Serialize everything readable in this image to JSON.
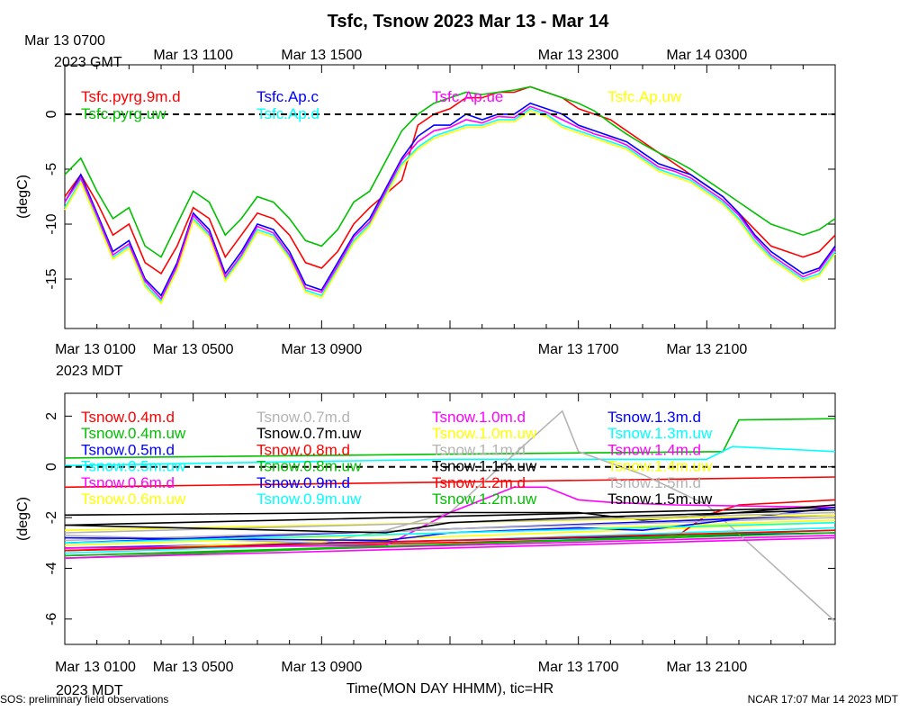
{
  "title": "Tsfc, Tsnow 2023 Mar 13 - Mar 14",
  "footer_left": "SOS: preliminary field observations",
  "footer_right": "NCAR 17:07 Mar 14 2023 MDT",
  "xlabel": "Time(MON DAY HHMM), tic=HR",
  "top_axis_year": "2023 GMT",
  "mid_axis_year": "2023 MDT",
  "bottom_axis_year": "2023 MDT",
  "top_ticks_gmt": [
    {
      "h": 0,
      "label": "Mar 13 0700"
    },
    {
      "h": 4,
      "label": "Mar 13 1100"
    },
    {
      "h": 8,
      "label": "Mar 13 1500"
    },
    {
      "h": 16,
      "label": "Mar 13 2300"
    },
    {
      "h": 20,
      "label": "Mar 14 0300"
    }
  ],
  "bottom_ticks_mdt": [
    {
      "h": 0,
      "label": "Mar 13 0100"
    },
    {
      "h": 4,
      "label": "Mar 13 0500"
    },
    {
      "h": 8,
      "label": "Mar 13 0900"
    },
    {
      "h": 16,
      "label": "Mar 13 1700"
    },
    {
      "h": 20,
      "label": "Mar 13 2100"
    }
  ],
  "chart_data": [
    {
      "type": "line",
      "panel": "Tsfc",
      "ylabel": "(degC)",
      "ylim": [
        -19.5,
        4.5
      ],
      "yticks": [
        0,
        -5,
        -10,
        -15
      ],
      "xlim_hours": [
        0,
        24
      ],
      "zero_line": "dashed",
      "series": [
        {
          "name": "Tsfc.pyrg.9m.d",
          "color": "#ff0000",
          "x": [
            0,
            0.5,
            1,
            1.5,
            2,
            2.5,
            3,
            3.5,
            4,
            4.5,
            5,
            5.5,
            6,
            6.5,
            7,
            7.5,
            8,
            8.5,
            9,
            9.5,
            10.5,
            11,
            11.5,
            12,
            12.5,
            13,
            13.5,
            14,
            14.5,
            15,
            15.5,
            16,
            16.5,
            17,
            17.5,
            18,
            18.5,
            19,
            19.5,
            20,
            20.5,
            21,
            21.5,
            22,
            22.5,
            23,
            23.5,
            24
          ],
          "y": [
            -7.5,
            -5.5,
            -8,
            -11,
            -10,
            -13.5,
            -14.5,
            -12,
            -8.5,
            -9.5,
            -13,
            -11,
            -9,
            -9.5,
            -11,
            -13.5,
            -14,
            -12.5,
            -10,
            -8.5,
            -6,
            -1,
            0,
            0.5,
            1.5,
            1.5,
            2,
            2,
            2.5,
            2,
            1.5,
            0.5,
            0,
            -0.5,
            -1.5,
            -2.5,
            -3.5,
            -4.5,
            -5.5,
            -6.5,
            -7.5,
            -9,
            -10.5,
            -12,
            -12.5,
            -13,
            -12.5,
            -11
          ]
        },
        {
          "name": "Tsfc.pyrg.uw",
          "color": "#00c000",
          "x": [
            0,
            0.5,
            1,
            1.5,
            2,
            2.5,
            3,
            3.5,
            4,
            4.5,
            5,
            5.5,
            6,
            6.5,
            7,
            7.5,
            8,
            8.5,
            9,
            9.5,
            10.5,
            11,
            11.5,
            12,
            12.5,
            13,
            13.5,
            14,
            14.5,
            15,
            15.5,
            16,
            16.5,
            17,
            17.5,
            18,
            18.5,
            19,
            19.5,
            20,
            20.5,
            21,
            21.5,
            22,
            22.5,
            23,
            23.5,
            24
          ],
          "y": [
            -5.5,
            -4,
            -7,
            -9.5,
            -8.5,
            -12,
            -13,
            -10,
            -7,
            -8,
            -11,
            -9.5,
            -7.5,
            -8,
            -9.5,
            -11.5,
            -12,
            -10.5,
            -8,
            -7,
            -1.5,
            0,
            1,
            1.5,
            2,
            1.8,
            2,
            2.2,
            2.5,
            2,
            1.5,
            1,
            0.3,
            -0.8,
            -1.8,
            -2.7,
            -3.5,
            -4.2,
            -5,
            -6,
            -7,
            -8,
            -9,
            -10,
            -10.5,
            -11,
            -10.5,
            -9.5
          ]
        },
        {
          "name": "Tsfc.Ap.c",
          "color": "#0000ff",
          "x": [
            0,
            0.5,
            1,
            1.5,
            2,
            2.5,
            3,
            3.5,
            4,
            4.5,
            5,
            5.5,
            6,
            6.5,
            7,
            7.5,
            8,
            8.5,
            9,
            9.5,
            10.5,
            11,
            11.5,
            12,
            12.5,
            13,
            13.5,
            14,
            14.5,
            15,
            15.5,
            16,
            16.5,
            17,
            17.5,
            18,
            18.5,
            19,
            19.5,
            20,
            20.5,
            21,
            21.5,
            22,
            22.5,
            23,
            23.5,
            24
          ],
          "y": [
            -8,
            -5.5,
            -9,
            -12.5,
            -11.5,
            -15,
            -16.5,
            -13.5,
            -9,
            -10.5,
            -14.5,
            -12.5,
            -10,
            -10.5,
            -12.5,
            -15.5,
            -16,
            -13.5,
            -11,
            -9.5,
            -4,
            -2,
            -1,
            -1,
            0,
            -0.5,
            0,
            0,
            1,
            0.5,
            0,
            -1,
            -1.5,
            -2,
            -2.5,
            -3.5,
            -4.5,
            -5,
            -5.5,
            -6.5,
            -7.5,
            -9,
            -11,
            -12.5,
            -13.5,
            -14.5,
            -14,
            -12
          ]
        },
        {
          "name": "Tsfc.Ap.d",
          "color": "#00ffff",
          "x": [
            0,
            0.5,
            1,
            1.5,
            2,
            2.5,
            3,
            3.5,
            4,
            4.5,
            5,
            5.5,
            6,
            6.5,
            7,
            7.5,
            8,
            8.5,
            9,
            9.5,
            10.5,
            11,
            11.5,
            12,
            12.5,
            13,
            13.5,
            14,
            14.5,
            15,
            15.5,
            16,
            16.5,
            17,
            17.5,
            18,
            18.5,
            19,
            19.5,
            20,
            20.5,
            21,
            21.5,
            22,
            22.5,
            23,
            23.5,
            24
          ],
          "y": [
            -8.5,
            -6,
            -9.5,
            -13,
            -12,
            -15.5,
            -17,
            -14,
            -9.5,
            -11,
            -15,
            -13,
            -10.5,
            -11,
            -13,
            -16,
            -16.5,
            -14,
            -11.5,
            -10,
            -4.5,
            -3,
            -2,
            -1.5,
            -1,
            -1,
            -0.5,
            -0.5,
            0.5,
            0,
            -1,
            -1.5,
            -2,
            -2.5,
            -3,
            -4,
            -5,
            -5.5,
            -6,
            -7,
            -8,
            -9.5,
            -11.5,
            -13,
            -14,
            -15,
            -14.5,
            -12.5
          ]
        },
        {
          "name": "Tsfc.Ap.ue",
          "color": "#ff00ff",
          "x": [
            0,
            0.5,
            1,
            1.5,
            2,
            2.5,
            3,
            3.5,
            4,
            4.5,
            5,
            5.5,
            6,
            6.5,
            7,
            7.5,
            8,
            8.5,
            9,
            9.5,
            10.5,
            11,
            11.5,
            12,
            12.5,
            13,
            13.5,
            14,
            14.5,
            15,
            15.5,
            16,
            16.5,
            17,
            17.5,
            18,
            18.5,
            19,
            19.5,
            20,
            20.5,
            21,
            21.5,
            22,
            22.5,
            23,
            23.5,
            24
          ],
          "y": [
            -8,
            -5.8,
            -9.2,
            -12.8,
            -11.8,
            -15.2,
            -16.8,
            -13.8,
            -9.2,
            -10.8,
            -14.8,
            -12.8,
            -10.2,
            -10.8,
            -12.8,
            -15.8,
            -16.2,
            -13.8,
            -11.2,
            -9.8,
            -4.2,
            -2.5,
            -1.5,
            -1.2,
            -0.5,
            -0.8,
            -0.2,
            -0.3,
            0.7,
            0.2,
            -0.5,
            -1.2,
            -1.8,
            -2.2,
            -2.8,
            -3.8,
            -4.8,
            -5.2,
            -5.8,
            -6.8,
            -7.8,
            -9.2,
            -11.2,
            -12.8,
            -13.8,
            -14.8,
            -14.2,
            -12.2
          ]
        },
        {
          "name": "Tsfc.Ap.uw",
          "color": "#ffff00",
          "x": [
            0,
            0.5,
            1,
            1.5,
            2,
            2.5,
            3,
            3.5,
            4,
            4.5,
            5,
            5.5,
            6,
            6.5,
            7,
            7.5,
            8,
            8.5,
            9,
            9.5,
            10.5,
            11,
            11.5,
            12,
            12.5,
            13,
            13.5,
            14,
            14.5,
            15,
            15.5,
            16,
            16.5,
            17,
            17.5,
            18,
            18.5,
            19,
            19.5,
            20,
            20.5,
            21,
            21.5,
            22,
            22.5,
            23,
            23.5,
            24
          ],
          "y": [
            -8.7,
            -6.2,
            -9.7,
            -13.2,
            -12.2,
            -15.7,
            -17.2,
            -14.2,
            -9.7,
            -11.2,
            -15.2,
            -13.2,
            -10.7,
            -11.2,
            -13.2,
            -16.2,
            -16.7,
            -14.2,
            -11.7,
            -10.2,
            -4.7,
            -3.2,
            -2.2,
            -1.7,
            -1.2,
            -1.2,
            -0.7,
            -0.7,
            0.3,
            -0.2,
            -1.2,
            -1.7,
            -2.2,
            -2.7,
            -3.2,
            -4.2,
            -5.2,
            -5.7,
            -6.2,
            -7.2,
            -8.2,
            -9.7,
            -11.7,
            -13.2,
            -14.2,
            -15.2,
            -14.7,
            -12.7
          ]
        }
      ]
    },
    {
      "type": "line",
      "panel": "Tsnow",
      "ylabel": "(degC)",
      "ylim": [
        -7.0,
        2.9
      ],
      "yticks": [
        2,
        0,
        -2,
        -4,
        -6
      ],
      "xlim_hours": [
        0,
        24
      ],
      "zero_line": "dashed",
      "series": [
        {
          "name": "Tsnow.0.4m.d",
          "color": "#ff0000",
          "x": [
            0,
            24
          ],
          "y": [
            -0.8,
            -0.4
          ]
        },
        {
          "name": "Tsnow.0.4m.uw",
          "color": "#00c000",
          "x": [
            0,
            12,
            20.5,
            21,
            24
          ],
          "y": [
            0.35,
            0.5,
            0.6,
            1.85,
            1.9
          ]
        },
        {
          "name": "Tsnow.0.5m.d",
          "color": "#0000ff",
          "x": [
            0,
            24
          ],
          "y": [
            -3.2,
            -2.6
          ]
        },
        {
          "name": "Tsnow.0.5m.uw",
          "color": "#00ffff",
          "x": [
            0,
            12,
            20,
            20.8,
            24
          ],
          "y": [
            0.05,
            0.3,
            0.3,
            0.8,
            0.6
          ]
        },
        {
          "name": "Tsnow.0.6m.d",
          "color": "#ff00ff",
          "x": [
            0,
            24
          ],
          "y": [
            -3.5,
            -2.7
          ]
        },
        {
          "name": "Tsnow.0.6m.uw",
          "color": "#ffff00",
          "x": [
            0,
            24
          ],
          "y": [
            -3.3,
            -2.2
          ]
        },
        {
          "name": "Tsnow.0.7m.d",
          "color": "#b4b4b4",
          "x": [
            0,
            8,
            10,
            12,
            14,
            15.5,
            16,
            18,
            20,
            22,
            24
          ],
          "y": [
            -2.7,
            -3.0,
            -2.5,
            -1.8,
            0.5,
            2.2,
            0.6,
            -0.3,
            -1.5,
            -3.8,
            -6.1
          ]
        },
        {
          "name": "Tsnow.0.7m.uw",
          "color": "#000000",
          "x": [
            0,
            24
          ],
          "y": [
            -2.3,
            -1.6
          ]
        },
        {
          "name": "Tsnow.0.8m.d",
          "color": "#ff0000",
          "x": [
            0,
            19,
            20,
            21,
            24
          ],
          "y": [
            -3.3,
            -2.8,
            -1.9,
            -1.5,
            -1.3
          ]
        },
        {
          "name": "Tsnow.0.8m.uw",
          "color": "#00c000",
          "x": [
            0,
            24
          ],
          "y": [
            -3.6,
            -2.5
          ]
        },
        {
          "name": "Tsnow.0.9m.d",
          "color": "#0000ff",
          "x": [
            0,
            24
          ],
          "y": [
            -3.0,
            -1.9
          ]
        },
        {
          "name": "Tsnow.0.9m.uw",
          "color": "#00ffff",
          "x": [
            0,
            24
          ],
          "y": [
            -3.4,
            -2.4
          ]
        },
        {
          "name": "Tsnow.1.0m.d",
          "color": "#ff00ff",
          "x": [
            0,
            10,
            12,
            14,
            15,
            16,
            17,
            19,
            24
          ],
          "y": [
            -3.2,
            -3.1,
            -1.8,
            -0.8,
            -0.8,
            -1.3,
            -1.4,
            -1.5,
            -1.6
          ]
        },
        {
          "name": "Tsnow.1.0m.uw",
          "color": "#ffff00",
          "x": [
            0,
            24
          ],
          "y": [
            -3.1,
            -2.1
          ]
        },
        {
          "name": "Tsnow.1.1m.d",
          "color": "#b4b4b4",
          "x": [
            0,
            24
          ],
          "y": [
            -2.9,
            -2.0
          ]
        },
        {
          "name": "Tsnow.1.1m.uw",
          "color": "#000000",
          "x": [
            0,
            10,
            12,
            16,
            18,
            24
          ],
          "y": [
            -1.9,
            -1.8,
            -1.8,
            -1.8,
            -2.1,
            -1.5
          ]
        },
        {
          "name": "Tsnow.1.2m.d",
          "color": "#ff0000",
          "x": [
            0,
            24
          ],
          "y": [
            -3.3,
            -2.5
          ]
        },
        {
          "name": "Tsnow.1.2m.uw",
          "color": "#00c000",
          "x": [
            0,
            24
          ],
          "y": [
            -3.5,
            -2.6
          ]
        },
        {
          "name": "Tsnow.1.3m.d",
          "color": "#0000ff",
          "x": [
            0,
            10,
            12,
            14,
            16,
            18,
            24
          ],
          "y": [
            -2.8,
            -2.9,
            -2.6,
            -2.5,
            -2.4,
            -2.5,
            -1.6
          ]
        },
        {
          "name": "Tsnow.1.3m.uw",
          "color": "#00ffff",
          "x": [
            0,
            24
          ],
          "y": [
            -3.0,
            -2.2
          ]
        },
        {
          "name": "Tsnow.1.4m.d",
          "color": "#ff00ff",
          "x": [
            0,
            24
          ],
          "y": [
            -3.6,
            -2.8
          ]
        },
        {
          "name": "Tsnow.1.4m.uw",
          "color": "#ffff00",
          "x": [
            0,
            24
          ],
          "y": [
            -2.5,
            -1.9
          ]
        },
        {
          "name": "Tsnow.1.5m.d",
          "color": "#b4b4b4",
          "x": [
            0,
            24
          ],
          "y": [
            -2.6,
            -1.8
          ]
        },
        {
          "name": "Tsnow.1.5m.uw",
          "color": "#000000",
          "x": [
            0,
            10,
            12,
            16,
            24
          ],
          "y": [
            -2.3,
            -2.6,
            -2.2,
            -2.0,
            -1.7
          ]
        }
      ]
    }
  ]
}
